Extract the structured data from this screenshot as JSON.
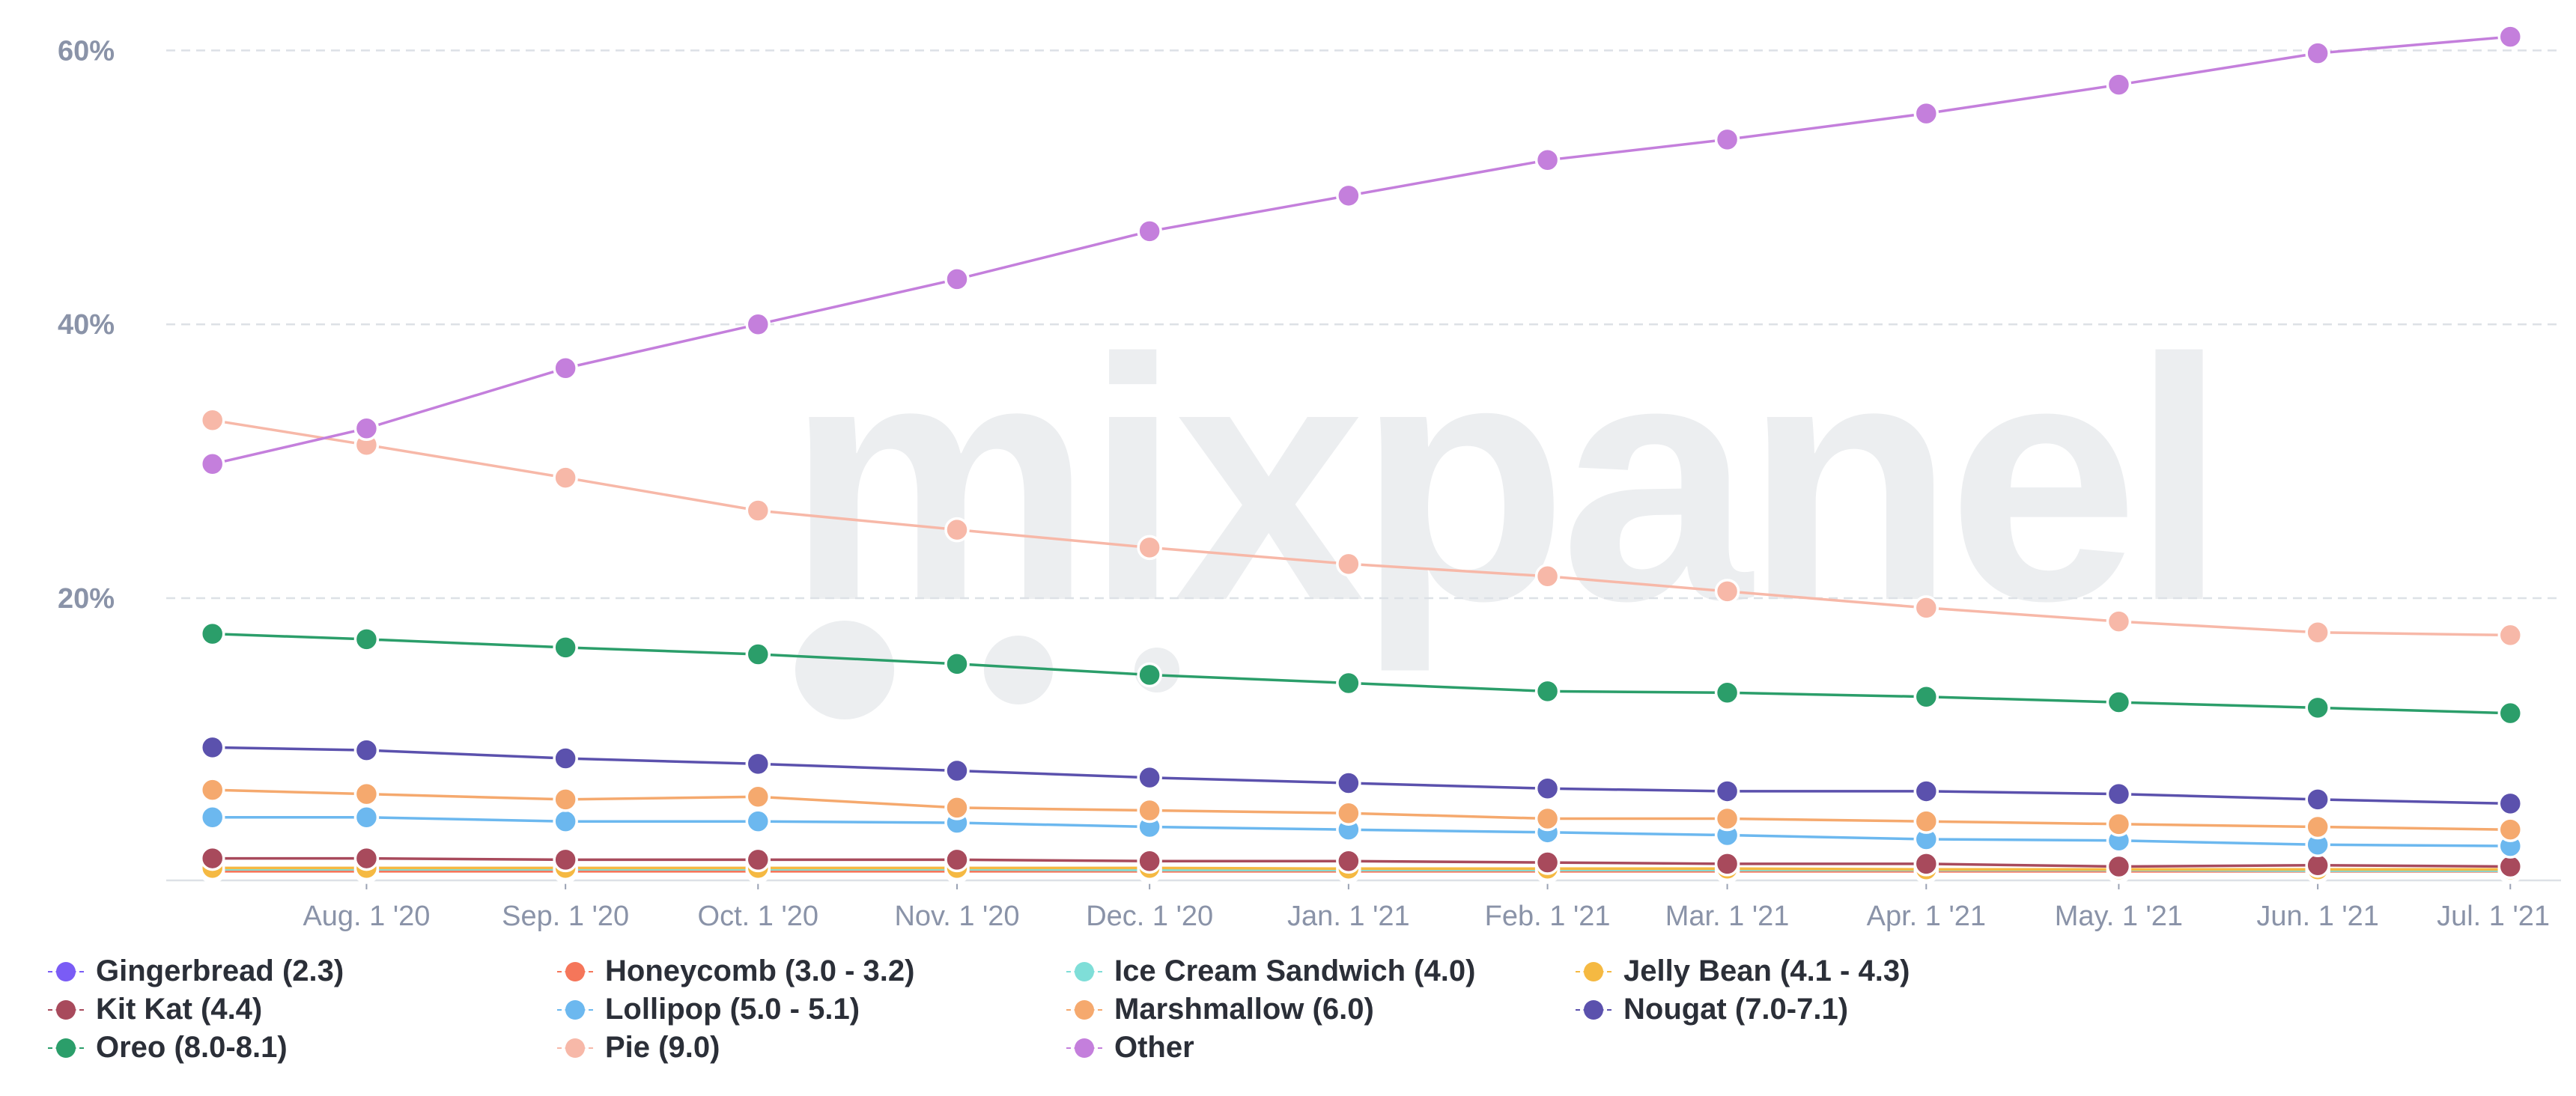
{
  "chart_data": {
    "type": "line",
    "title": "",
    "xlabel": "",
    "ylabel": "",
    "ylim": [
      -0.5,
      61.5
    ],
    "y_ticks": [
      {
        "value": 20,
        "label": "20%"
      },
      {
        "value": 40,
        "label": "40%"
      },
      {
        "value": 60,
        "label": "60%"
      }
    ],
    "x_tick_labels": [
      "Aug. 1 '20",
      "Sep. 1 '20",
      "Oct. 1 '20",
      "Nov. 1 '20",
      "Dec. 1 '20",
      "Jan. 1 '21",
      "Feb. 1 '21",
      "Mar. 1 '21",
      "Apr. 1 '21",
      "May. 1 '21",
      "Jun. 1 '21",
      "Jul. 1 '21"
    ],
    "x_dates": [
      "2020-07-08",
      "2020-08-01",
      "2020-09-01",
      "2020-10-01",
      "2020-11-01",
      "2020-12-01",
      "2021-01-01",
      "2021-02-01",
      "2021-03-01",
      "2021-04-01",
      "2021-05-01",
      "2021-06-01",
      "2021-07-01"
    ],
    "watermark": "mixpanel",
    "grid": true,
    "legend_position": "bottom",
    "series": [
      {
        "name": "Gingerbread (2.3)",
        "color": "#7a5cf5",
        "values": [
          0.1,
          0.1,
          0.1,
          0.1,
          0.1,
          0.1,
          0.1,
          0.1,
          0.1,
          0.1,
          0.1,
          0.1,
          0.1
        ]
      },
      {
        "name": "Honeycomb (3.0 - 3.2)",
        "color": "#f5765a",
        "values": [
          0.05,
          0.05,
          0.05,
          0.05,
          0.05,
          0.05,
          0.05,
          0.05,
          0.05,
          0.05,
          0.05,
          0.05,
          0.05
        ]
      },
      {
        "name": "Ice Cream Sandwich (4.0)",
        "color": "#7fded8",
        "values": [
          0.2,
          0.2,
          0.2,
          0.2,
          0.2,
          0.15,
          0.15,
          0.15,
          0.15,
          0.15,
          0.15,
          0.1,
          0.1
        ]
      },
      {
        "name": "Jelly Bean (4.1 - 4.3)",
        "color": "#f5b942",
        "values": [
          0.3,
          0.3,
          0.3,
          0.3,
          0.3,
          0.3,
          0.25,
          0.25,
          0.25,
          0.2,
          0.2,
          0.2,
          0.2
        ]
      },
      {
        "name": "Kit Kat (4.4)",
        "color": "#a84a5c",
        "values": [
          1.0,
          1.0,
          0.9,
          0.9,
          0.9,
          0.8,
          0.8,
          0.7,
          0.6,
          0.6,
          0.4,
          0.5,
          0.4
        ]
      },
      {
        "name": "Lollipop (5.0 - 5.1)",
        "color": "#6cb8ef",
        "values": [
          4.0,
          4.0,
          3.7,
          3.7,
          3.6,
          3.3,
          3.1,
          2.9,
          2.7,
          2.4,
          2.3,
          2.0,
          1.9
        ]
      },
      {
        "name": "Marshmallow (6.0)",
        "color": "#f5a96e",
        "values": [
          6.0,
          5.7,
          5.3,
          5.5,
          4.7,
          4.5,
          4.3,
          3.9,
          3.9,
          3.7,
          3.5,
          3.3,
          3.1
        ]
      },
      {
        "name": "Nougat (7.0-7.1)",
        "color": "#5b51ad",
        "values": [
          9.1,
          8.9,
          8.3,
          7.9,
          7.4,
          6.9,
          6.5,
          6.1,
          5.9,
          5.9,
          5.7,
          5.3,
          5.0
        ]
      },
      {
        "name": "Oreo (8.0-8.1)",
        "color": "#2b9e6a",
        "values": [
          17.4,
          17.0,
          16.4,
          15.9,
          15.2,
          14.4,
          13.8,
          13.2,
          13.1,
          12.8,
          12.4,
          12.0,
          11.6
        ]
      },
      {
        "name": "Pie (9.0)",
        "color": "#f7b8a8",
        "values": [
          33.0,
          31.2,
          28.8,
          26.4,
          25.0,
          23.7,
          22.5,
          21.6,
          20.5,
          19.3,
          18.3,
          17.5,
          17.3
        ]
      },
      {
        "name": "Other",
        "color": "#c47fdc",
        "values": [
          29.8,
          32.4,
          36.8,
          40.0,
          43.3,
          46.8,
          49.4,
          52.0,
          53.5,
          55.4,
          57.5,
          59.8,
          61.0
        ]
      }
    ]
  }
}
